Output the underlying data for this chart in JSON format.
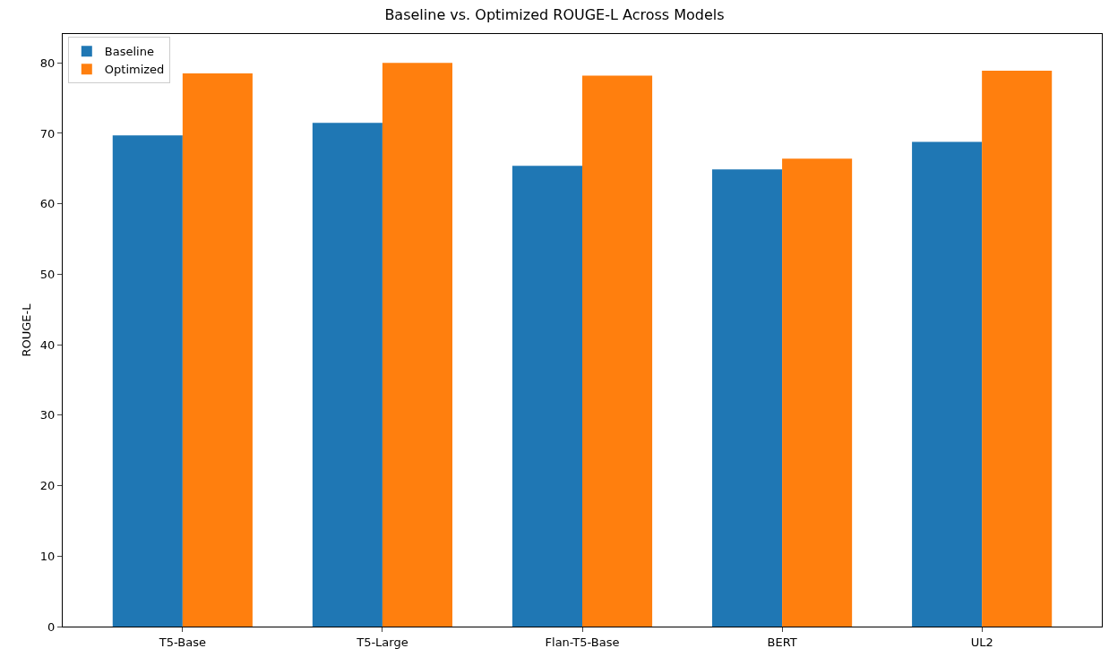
{
  "chart_data": {
    "type": "bar",
    "title": "Baseline vs. Optimized ROUGE-L Across Models",
    "ylabel": "ROUGE-L",
    "categories": [
      "T5-Base",
      "T5-Large",
      "Flan-T5-Base",
      "BERT",
      "UL2"
    ],
    "series": [
      {
        "name": "Baseline",
        "color": "#1f77b4",
        "values": [
          69.7,
          71.5,
          65.4,
          64.9,
          68.8
        ]
      },
      {
        "name": "Optimized",
        "color": "#ff7f0e",
        "values": [
          78.5,
          80.0,
          78.2,
          66.4,
          78.9
        ]
      }
    ],
    "ylim": [
      0,
      84.1
    ],
    "yticks": [
      0,
      10,
      20,
      30,
      40,
      50,
      60,
      70,
      80
    ],
    "grid": false,
    "legend": "top left"
  }
}
